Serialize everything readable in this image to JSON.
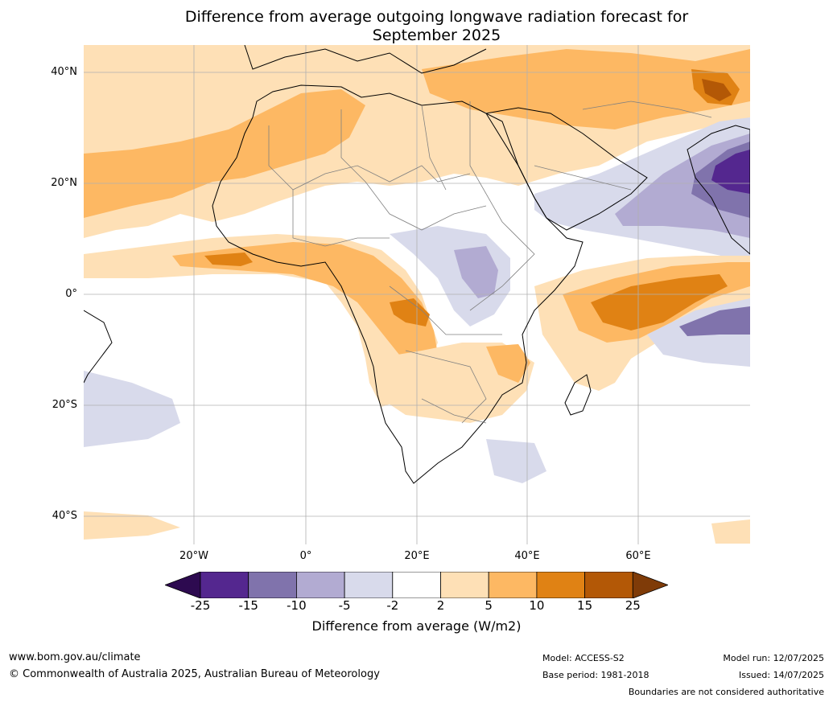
{
  "title_line1": "Difference from average outgoing longwave radiation forecast for",
  "title_line2": "September 2025",
  "lat_labels": [
    "40°N",
    "20°N",
    "0°",
    "20°S",
    "40°S"
  ],
  "lon_labels": [
    "20°W",
    "0°",
    "20°E",
    "40°E",
    "60°E"
  ],
  "colorbar": {
    "label": "Difference from average (W/m2)",
    "ticks": [
      "-25",
      "-15",
      "-10",
      "-5",
      "-2",
      "2",
      "5",
      "10",
      "15",
      "25"
    ],
    "colors": {
      "below_min": "#2d0a50",
      "n25_n15": "#54278f",
      "n15_n10": "#8073ac",
      "n10_n5": "#b2abd2",
      "n5_n2": "#d8daeb",
      "n2_2": "#ffffff",
      "p2_5": "#fee0b6",
      "p5_10": "#fdb863",
      "p10_15": "#e08214",
      "p15_25": "#b35806",
      "above_max": "#7f3b08"
    }
  },
  "footer": {
    "url": "www.bom.gov.au/climate",
    "copyright": "© Commonwealth of Australia 2025, Australian Bureau of Meteorology",
    "model": "Model: ACCESS-S2",
    "base_period": "Base period: 1981-2018",
    "model_run": "Model run: 12/07/2025",
    "issued": "Issued: 14/07/2025",
    "disclaimer": "Boundaries are not considered authoritative"
  }
}
